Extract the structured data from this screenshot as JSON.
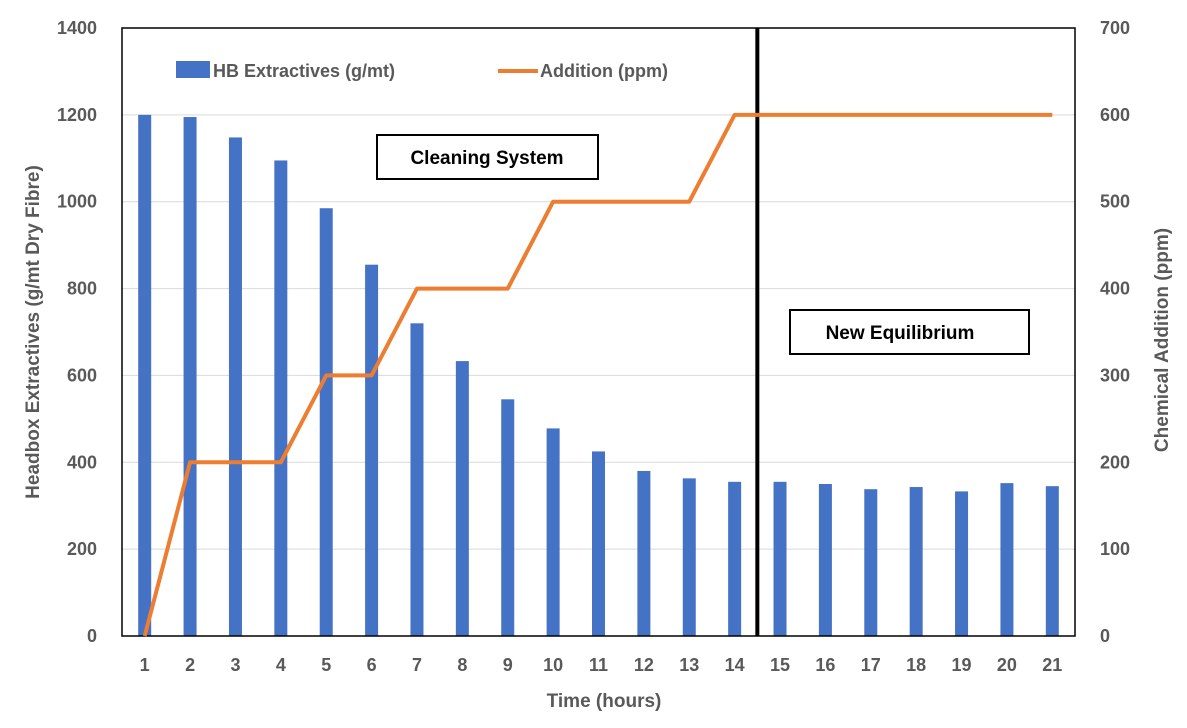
{
  "chart_data": {
    "type": "bar",
    "x": [
      1,
      2,
      3,
      4,
      5,
      6,
      7,
      8,
      9,
      10,
      11,
      12,
      13,
      14,
      15,
      16,
      17,
      18,
      19,
      20,
      21
    ],
    "xlabel": "Time (hours)",
    "ylabel": "Headbox Extractives (g/mt Dry Fibre)",
    "y2label": "Chemical Addition (ppm)",
    "ylim": [
      0,
      1400
    ],
    "y2lim": [
      0,
      700
    ],
    "yticks": [
      0,
      200,
      400,
      600,
      800,
      1000,
      1200,
      1400
    ],
    "y2ticks": [
      0,
      100,
      200,
      300,
      400,
      500,
      600,
      700
    ],
    "grid": true,
    "legend_position": "top-left",
    "series": [
      {
        "name": "HB Extractives (g/mt)",
        "type": "bar",
        "axis": "left",
        "color": "#4472C4",
        "values": [
          1200,
          1195,
          1148,
          1095,
          985,
          855,
          720,
          633,
          545,
          478,
          425,
          380,
          363,
          355,
          355,
          350,
          338,
          343,
          333,
          352,
          345
        ]
      },
      {
        "name": "Addition (ppm)",
        "type": "line",
        "axis": "right",
        "color": "#ED7D31",
        "values": [
          0,
          200,
          200,
          200,
          300,
          300,
          400,
          400,
          400,
          500,
          500,
          500,
          500,
          600,
          600,
          600,
          600,
          600,
          600,
          600,
          600
        ]
      }
    ],
    "annotations": [
      {
        "text": "Cleaning System"
      },
      {
        "text": "New Equilibrium"
      }
    ],
    "divider_after_x": 14
  }
}
